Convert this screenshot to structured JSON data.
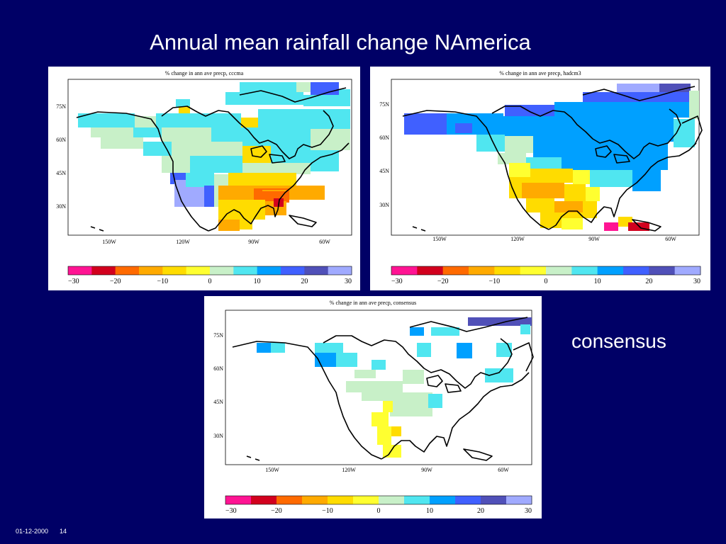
{
  "slide": {
    "title": "Annual mean rainfall change NAmerica",
    "side_label": "consensus",
    "footer_date": "01-12-2000",
    "page_number": "14"
  },
  "colorbar": {
    "tick_labels": [
      "−30",
      "−20",
      "−10",
      "0",
      "10",
      "20",
      "30"
    ],
    "colors": [
      "#ff1493",
      "#d2001e",
      "#ff6a00",
      "#ffaa00",
      "#ffdc00",
      "#ffff30",
      "#c8f0c8",
      "#50e6f0",
      "#00a0ff",
      "#4060ff",
      "#5050b8",
      "#a0aaff"
    ]
  },
  "maps": [
    {
      "id": "cccma",
      "title": "% change in ann ave precp, cccma",
      "lat_labels": [
        "75N",
        "60N",
        "45N",
        "30N"
      ],
      "lon_labels": [
        "150W",
        "120W",
        "90W",
        "60W"
      ]
    },
    {
      "id": "hadcm3",
      "title": "% change in ann ave precp, hadcm3",
      "lat_labels": [
        "75N",
        "60N",
        "45N",
        "30N"
      ],
      "lon_labels": [
        "150W",
        "120W",
        "90W",
        "60W"
      ]
    },
    {
      "id": "consensus",
      "title": "% change in ann ave precp, consensus",
      "lat_labels": [
        "75N",
        "60N",
        "45N",
        "30N"
      ],
      "lon_labels": [
        "150W",
        "120W",
        "90W",
        "60W"
      ]
    }
  ]
}
